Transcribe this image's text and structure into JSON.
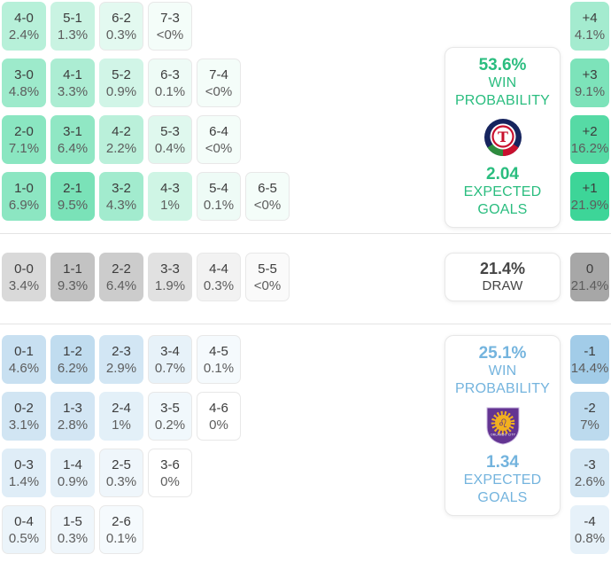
{
  "chart_data": {
    "type": "heatmap",
    "matrix": {
      "home": {
        "base": "#3dd598",
        "scale_max": 22,
        "rows": [
          [
            {
              "score": "4-0",
              "pct": "2.4%",
              "v": 2.4
            },
            {
              "score": "5-1",
              "pct": "1.3%",
              "v": 1.3
            },
            {
              "score": "6-2",
              "pct": "0.3%",
              "v": 0.3
            },
            {
              "score": "7-3",
              "pct": "<0%",
              "v": 0.04
            }
          ],
          [
            {
              "score": "3-0",
              "pct": "4.8%",
              "v": 4.8
            },
            {
              "score": "4-1",
              "pct": "3.3%",
              "v": 3.3
            },
            {
              "score": "5-2",
              "pct": "0.9%",
              "v": 0.9
            },
            {
              "score": "6-3",
              "pct": "0.1%",
              "v": 0.1
            },
            {
              "score": "7-4",
              "pct": "<0%",
              "v": 0.04
            }
          ],
          [
            {
              "score": "2-0",
              "pct": "7.1%",
              "v": 7.1
            },
            {
              "score": "3-1",
              "pct": "6.4%",
              "v": 6.4
            },
            {
              "score": "4-2",
              "pct": "2.2%",
              "v": 2.2
            },
            {
              "score": "5-3",
              "pct": "0.4%",
              "v": 0.4
            },
            {
              "score": "6-4",
              "pct": "<0%",
              "v": 0.04
            }
          ],
          [
            {
              "score": "1-0",
              "pct": "6.9%",
              "v": 6.9
            },
            {
              "score": "2-1",
              "pct": "9.5%",
              "v": 9.5
            },
            {
              "score": "3-2",
              "pct": "4.3%",
              "v": 4.3
            },
            {
              "score": "4-3",
              "pct": "1%",
              "v": 1
            },
            {
              "score": "5-4",
              "pct": "0.1%",
              "v": 0.1
            },
            {
              "score": "6-5",
              "pct": "<0%",
              "v": 0.04
            }
          ]
        ]
      },
      "draw": {
        "base": "#a6a6a6",
        "scale_max": 22,
        "rows": [
          [
            {
              "score": "0-0",
              "pct": "3.4%",
              "v": 3.4
            },
            {
              "score": "1-1",
              "pct": "9.3%",
              "v": 9.3
            },
            {
              "score": "2-2",
              "pct": "6.4%",
              "v": 6.4
            },
            {
              "score": "3-3",
              "pct": "1.9%",
              "v": 1.9
            },
            {
              "score": "4-4",
              "pct": "0.3%",
              "v": 0.3
            },
            {
              "score": "5-5",
              "pct": "<0%",
              "v": 0.04
            }
          ]
        ]
      },
      "away": {
        "base": "#8fc1e3",
        "scale_max": 22,
        "rows": [
          [
            {
              "score": "0-1",
              "pct": "4.6%",
              "v": 4.6
            },
            {
              "score": "1-2",
              "pct": "6.2%",
              "v": 6.2
            },
            {
              "score": "2-3",
              "pct": "2.9%",
              "v": 2.9
            },
            {
              "score": "3-4",
              "pct": "0.7%",
              "v": 0.7
            },
            {
              "score": "4-5",
              "pct": "0.1%",
              "v": 0.1
            }
          ],
          [
            {
              "score": "0-2",
              "pct": "3.1%",
              "v": 3.1
            },
            {
              "score": "1-3",
              "pct": "2.8%",
              "v": 2.8
            },
            {
              "score": "2-4",
              "pct": "1%",
              "v": 1
            },
            {
              "score": "3-5",
              "pct": "0.2%",
              "v": 0.2
            },
            {
              "score": "4-6",
              "pct": "0%",
              "v": 0
            }
          ],
          [
            {
              "score": "0-3",
              "pct": "1.4%",
              "v": 1.4
            },
            {
              "score": "1-4",
              "pct": "0.9%",
              "v": 0.9
            },
            {
              "score": "2-5",
              "pct": "0.3%",
              "v": 0.3
            },
            {
              "score": "3-6",
              "pct": "0%",
              "v": 0
            }
          ],
          [
            {
              "score": "0-4",
              "pct": "0.5%",
              "v": 0.5
            },
            {
              "score": "1-5",
              "pct": "0.3%",
              "v": 0.3
            },
            {
              "score": "2-6",
              "pct": "0.1%",
              "v": 0.1
            }
          ]
        ]
      }
    },
    "goal_diffs": {
      "home": {
        "base": "#3dd598",
        "scale_max": 22,
        "cells": [
          {
            "label": "+4",
            "pct": "4.1%",
            "v": 4.1
          },
          {
            "label": "+3",
            "pct": "9.1%",
            "v": 9.1
          },
          {
            "label": "+2",
            "pct": "16.2%",
            "v": 16.2
          },
          {
            "label": "+1",
            "pct": "21.9%",
            "v": 21.9
          }
        ]
      },
      "draw": {
        "base": "#a6a6a6",
        "scale_max": 22,
        "cells": [
          {
            "label": "0",
            "pct": "21.4%",
            "v": 21.4
          }
        ]
      },
      "away": {
        "base": "#8fc1e3",
        "scale_max": 22,
        "cells": [
          {
            "label": "-1",
            "pct": "14.4%",
            "v": 14.4
          },
          {
            "label": "-2",
            "pct": "7%",
            "v": 7
          },
          {
            "label": "-3",
            "pct": "2.6%",
            "v": 2.6
          },
          {
            "label": "-4",
            "pct": "0.8%",
            "v": 0.8
          }
        ]
      }
    },
    "panels": {
      "home": {
        "win_pct": "53.6%",
        "win_label": "WIN PROBABILITY",
        "xg": "2.04",
        "xg_label": "EXPECTED GOALS",
        "color": "#2abd7f"
      },
      "draw": {
        "pct": "21.4%",
        "label": "DRAW",
        "color": "#454545"
      },
      "away": {
        "win_pct": "25.1%",
        "win_label": "WIN PROBABILITY",
        "xg": "1.34",
        "xg_label": "EXPECTED GOALS",
        "color": "#74b4de",
        "badge_text": "ORLANDO CITY"
      }
    }
  }
}
